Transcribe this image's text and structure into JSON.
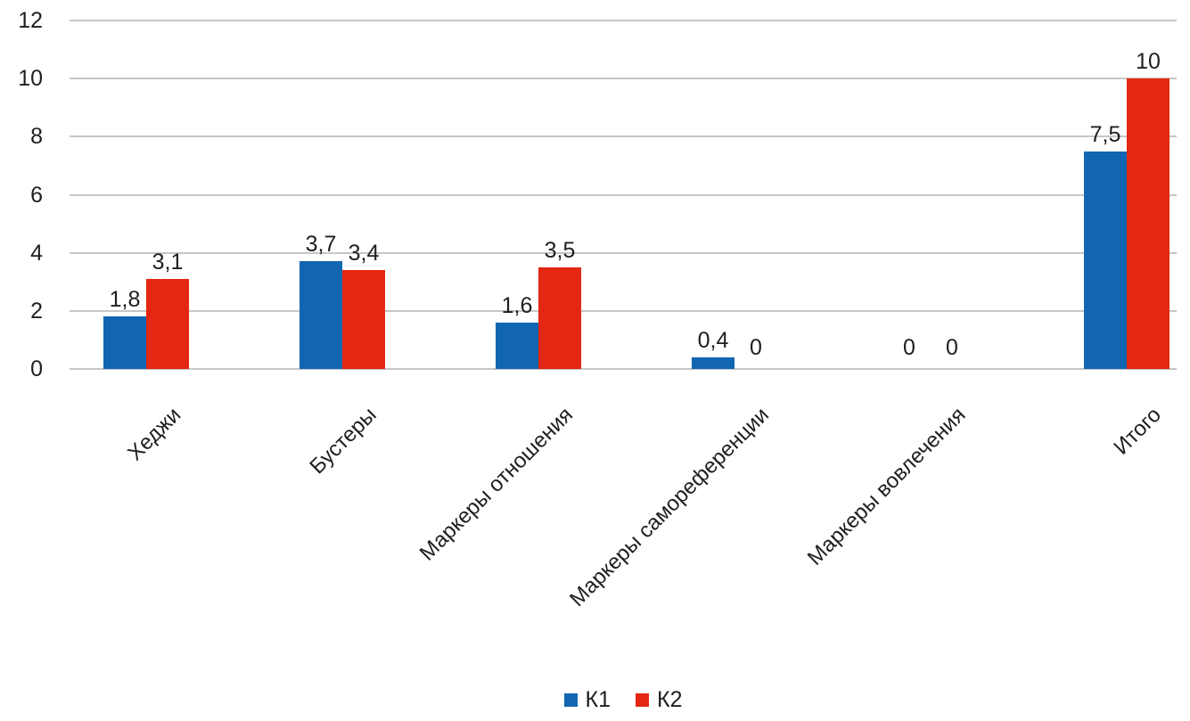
{
  "chart_data": {
    "type": "bar",
    "categories": [
      "Хеджи",
      "Бустеры",
      "Маркеры отношения",
      "Маркеры самореференции",
      "Маркеры вовлечения",
      "Итого"
    ],
    "series": [
      {
        "name": "К1",
        "color": "#1266b1",
        "values": [
          1.8,
          3.7,
          1.6,
          0.4,
          0,
          7.5
        ],
        "labels": [
          "1,8",
          "3,7",
          "1,6",
          "0,4",
          "0",
          "7,5"
        ]
      },
      {
        "name": "К2",
        "color": "#e42713",
        "values": [
          3.1,
          3.4,
          3.5,
          0,
          0,
          10
        ],
        "labels": [
          "3,1",
          "3,4",
          "3,5",
          "0",
          "0",
          "10"
        ]
      }
    ],
    "title": "",
    "xlabel": "",
    "ylabel": "",
    "y_ticks": [
      0,
      2,
      4,
      6,
      8,
      10,
      12
    ],
    "ylim": [
      0,
      12
    ],
    "grid": true,
    "legend_position": "bottom",
    "decimal_separator": ","
  },
  "colors": {
    "series1": "#1266b1",
    "series2": "#e42713",
    "gridline": "#c6c6c6",
    "text": "#1f1f1f",
    "background": "#ffffff"
  }
}
